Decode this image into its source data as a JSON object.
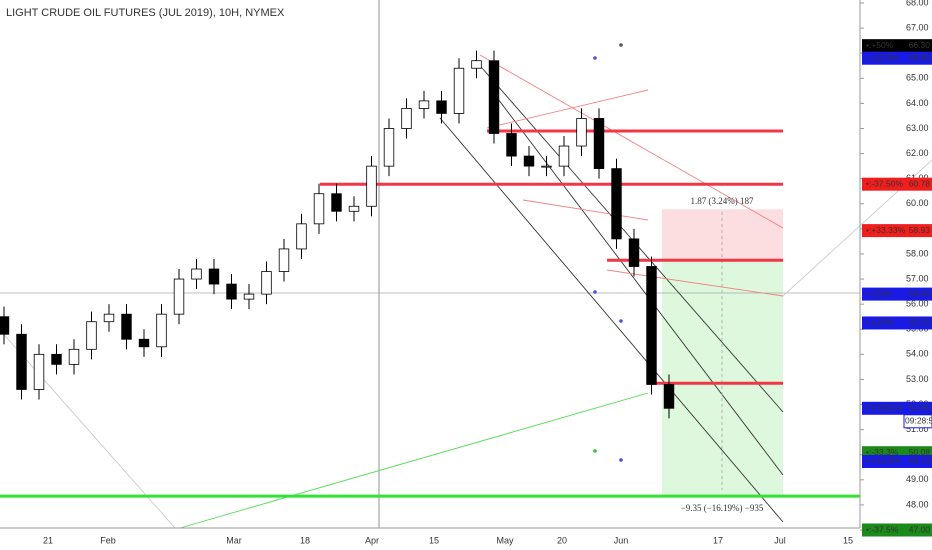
{
  "chart_data": {
    "type": "candlestick",
    "title": "LIGHT CRUDE OIL FUTURES (JUL 2019), 10H, NYMEX",
    "xlabels": [
      "21",
      "Feb",
      "Mar",
      "18",
      "Apr",
      "15",
      "May",
      "20",
      "Jun",
      "17",
      "Jul",
      "15"
    ],
    "open": [
      55.5,
      54.8,
      52.6,
      54,
      53.6,
      54.2,
      55.3,
      55.6,
      54.6,
      54.3,
      55.6,
      57,
      57.4,
      56.8,
      56.2,
      56.4,
      57.3,
      58.2,
      59.2,
      60.4,
      59.7,
      59.9,
      61.5,
      63,
      63.8,
      64.1,
      63.6,
      65.4,
      65.7,
      62.8,
      61.9,
      61.5,
      61.5,
      62.3,
      63.4,
      61.4,
      58.6,
      57.5,
      52.8
    ],
    "high": [
      55.9,
      55.2,
      54.4,
      54.4,
      54.6,
      55.7,
      56,
      56,
      55,
      56,
      57.4,
      57.8,
      57.8,
      57.2,
      56.8,
      57.7,
      58.6,
      59.6,
      60.8,
      60.8,
      60.3,
      61.9,
      63.4,
      64.2,
      64.5,
      64.5,
      65.8,
      66.1,
      66.1,
      63.2,
      62.3,
      61.9,
      62.7,
      63.8,
      63.8,
      61.8,
      59,
      57.9,
      53.2
    ],
    "low": [
      54.4,
      52.2,
      52.2,
      53.2,
      53.2,
      53.8,
      54.9,
      54.2,
      53.9,
      53.9,
      55.2,
      56.6,
      56.4,
      55.8,
      55.8,
      56,
      56.9,
      57.8,
      58.8,
      59.3,
      59.3,
      59.5,
      61.1,
      62.6,
      63.4,
      63.2,
      63.2,
      65,
      62.4,
      61.5,
      61.1,
      61.1,
      61.1,
      61.9,
      61,
      58.2,
      57.1,
      52.4,
      51.45
    ],
    "close": [
      54.8,
      52.6,
      54,
      53.6,
      54.2,
      55.3,
      55.6,
      54.6,
      54.3,
      55.6,
      57,
      57.4,
      56.8,
      56.2,
      56.4,
      57.3,
      58.2,
      59.2,
      60.4,
      59.7,
      59.9,
      61.5,
      63,
      63.8,
      64.1,
      63.6,
      65.4,
      65.7,
      62.8,
      61.9,
      61.5,
      61.5,
      62.3,
      63.4,
      61.4,
      58.6,
      57.5,
      52.8,
      51.85
    ],
    "ylim": [
      47,
      68
    ],
    "yticks": [
      {
        "value": 68,
        "label": "68.00"
      },
      {
        "value": 67,
        "label": "67.00"
      },
      {
        "value": 66,
        "label": "66.00"
      },
      {
        "value": 65,
        "label": "65.00"
      },
      {
        "value": 64,
        "label": "64.00"
      },
      {
        "value": 63,
        "label": "63.00"
      },
      {
        "value": 62,
        "label": "62.00"
      },
      {
        "value": 61,
        "label": "61.00"
      },
      {
        "value": 60,
        "label": "60.00"
      },
      {
        "value": 59,
        "label": "59.00"
      },
      {
        "value": 58,
        "label": "58.00"
      },
      {
        "value": 57,
        "label": "57.00"
      },
      {
        "value": 56,
        "label": "56.00"
      },
      {
        "value": 55,
        "label": "55.00"
      },
      {
        "value": 54,
        "label": "54.00"
      },
      {
        "value": 53,
        "label": "53.00"
      },
      {
        "value": 52,
        "label": "52.00"
      },
      {
        "value": 51,
        "label": "51.00"
      },
      {
        "value": 50,
        "label": "50.00"
      },
      {
        "value": 49,
        "label": "49.00"
      },
      {
        "value": 48,
        "label": "48.00"
      },
      {
        "value": 47,
        "label": "47.00"
      }
    ],
    "levels": [
      {
        "value": 62.9,
        "color": "#f23645"
      },
      {
        "value": 60.78,
        "color": "#f23645"
      },
      {
        "value": 57.75,
        "color": "#f23645"
      },
      {
        "value": 52.85,
        "color": "#f23645"
      },
      {
        "value": 48.35,
        "color": "#33e033"
      }
    ],
    "zones": [
      {
        "from": 59.78,
        "to": 57.7,
        "color": "#fcdde0"
      },
      {
        "from": 57.7,
        "to": 48.35,
        "color": "#ddf8dd"
      }
    ],
    "annotations": [
      "1.87 (3.24%) 187",
      "−9.35 (−16.19%) −935"
    ],
    "countdown": "09:28:56",
    "tags": [
      {
        "label": "•:+50%",
        "value": 66.3,
        "value_label": "66.30",
        "color": "#000000"
      },
      {
        "label": "•:-12.5%",
        "value": 65.8,
        "value_label": "65.80",
        "color": "#1a1ae6"
      },
      {
        "label": "•:-37.50%",
        "value": 60.78,
        "value_label": "60.78",
        "color": "#f21d1d"
      },
      {
        "label": "•:+33.33%",
        "value": 58.93,
        "value_label": "58.93",
        "color": "#f21d1d"
      },
      {
        "label": "•:-25%",
        "value": 56.4,
        "value_label": "56.40",
        "color": "#1a1ae6"
      },
      {
        "label": "•:+25%",
        "value": 55.25,
        "value_label": "55.25",
        "color": "#1a1ae6"
      },
      {
        "label": "CLN2019",
        "value": 51.85,
        "value_label": "51.85",
        "color": "#1a1ae6"
      },
      {
        "label": "•:-33.3%",
        "value": 50.08,
        "value_label": "50.08",
        "color": "#1a8a1a"
      },
      {
        "label": "•:+12.5%",
        "value": 49.73,
        "value_label": "49.73",
        "color": "#1a1ae6"
      },
      {
        "label": "•:-37.5%",
        "value": 47,
        "value_label": "47.00",
        "color": "#1a8a1a"
      }
    ]
  }
}
